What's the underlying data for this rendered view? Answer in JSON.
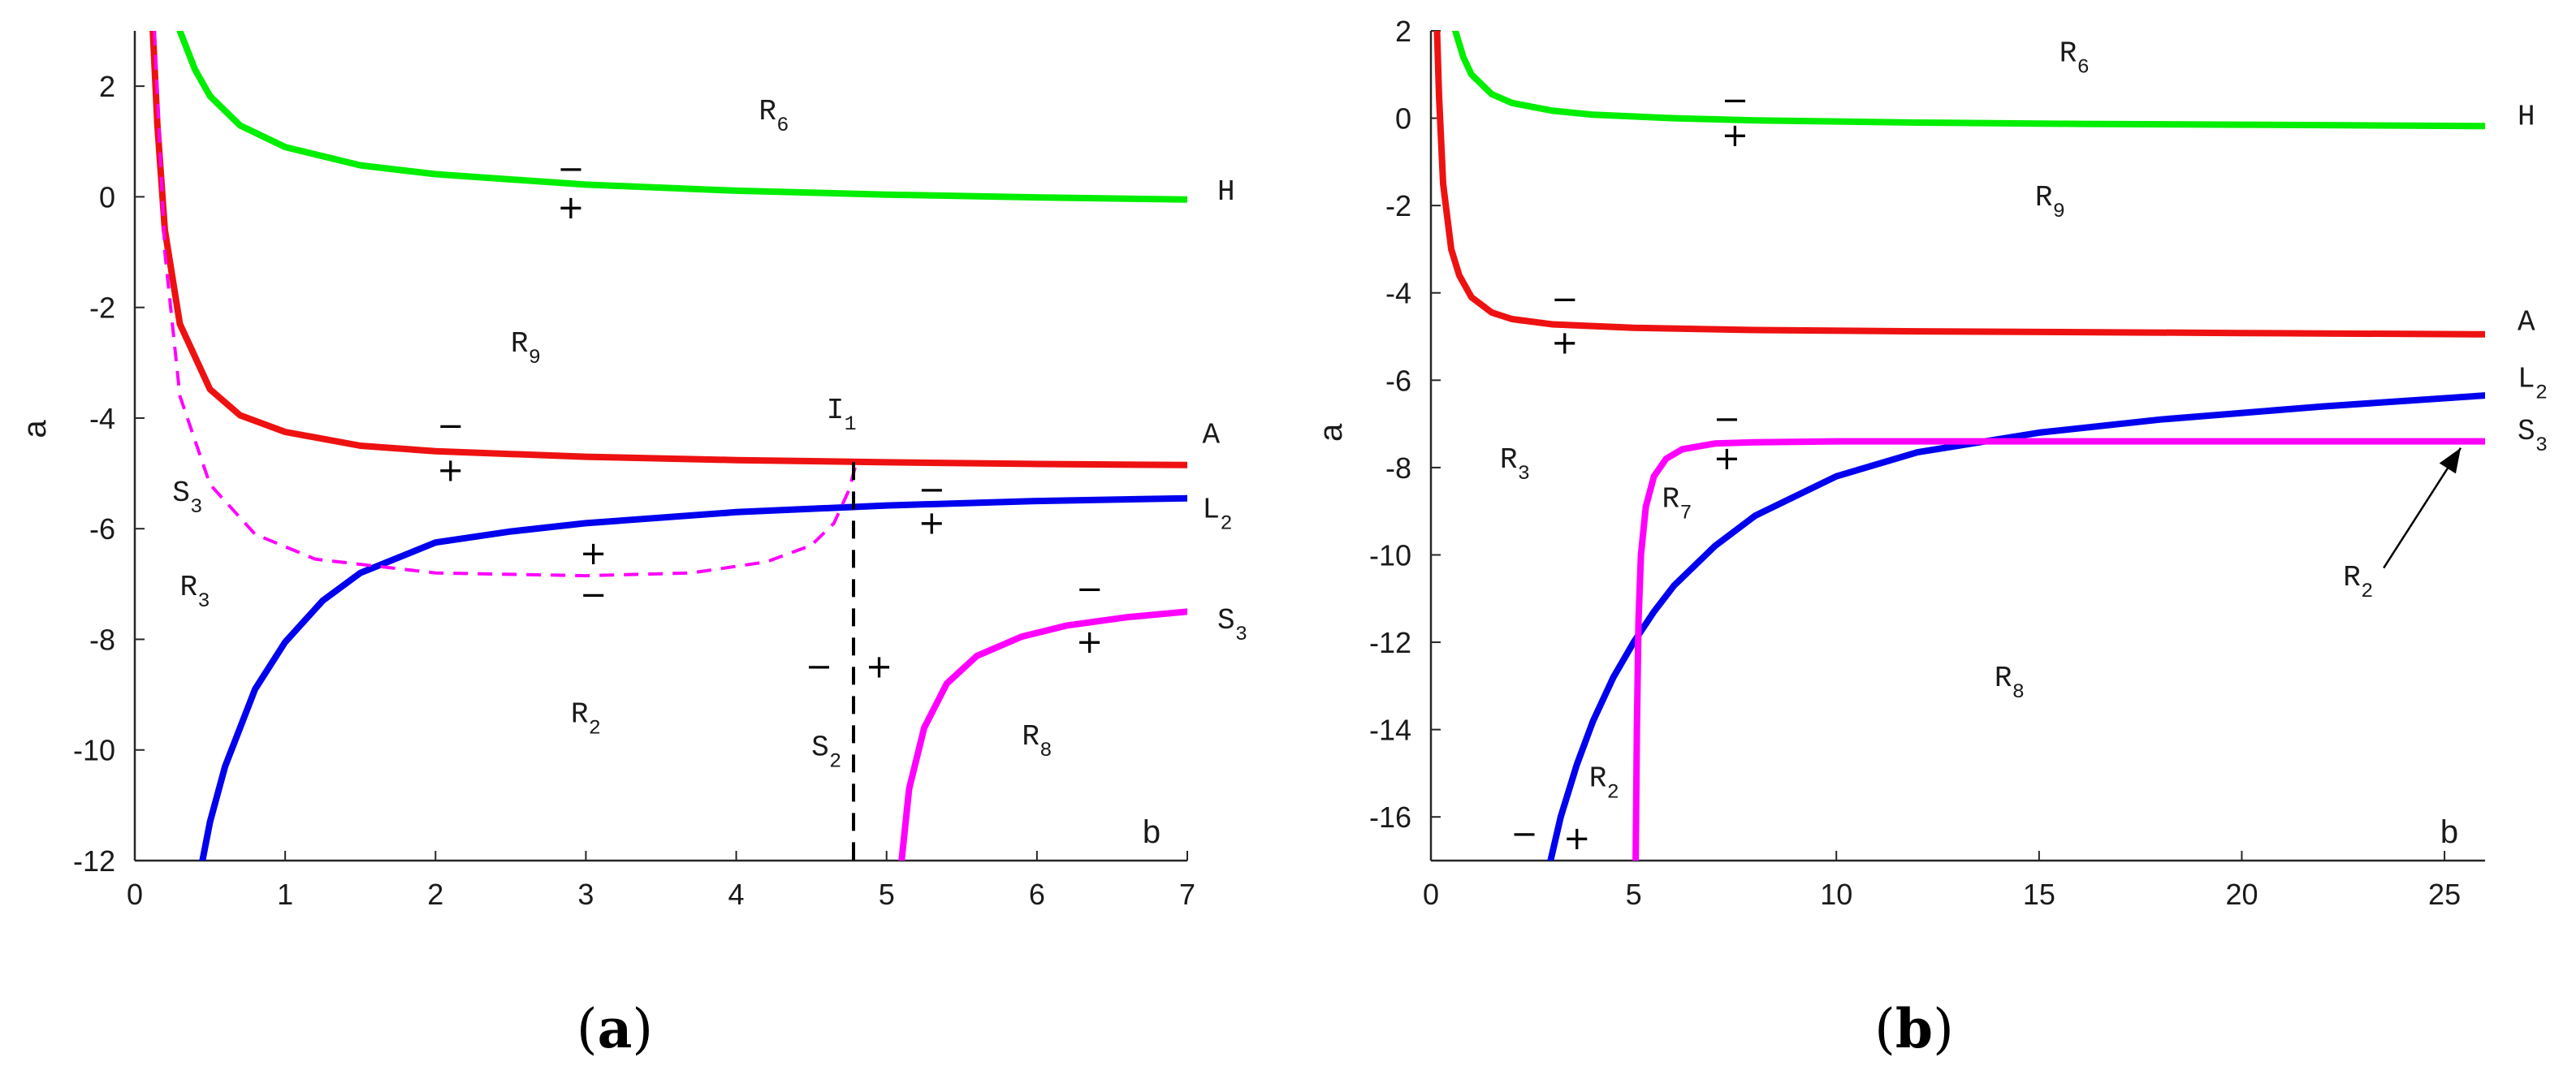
{
  "chart_data": [
    {
      "type": "line",
      "caption": "(a)",
      "caption_parts": [
        "(",
        "a",
        ")"
      ],
      "xlabel": "b",
      "ylabel": "a",
      "xlim": [
        0,
        7
      ],
      "ylim": [
        -12,
        3
      ],
      "xticks": [
        0,
        1,
        2,
        3,
        4,
        5,
        6,
        7
      ],
      "yticks": [
        2,
        0,
        -2,
        -4,
        -6,
        -8,
        -10,
        -12
      ],
      "series": [
        {
          "name": "H",
          "color": "#00ee00",
          "style": "solid",
          "x": [
            0.3,
            0.4,
            0.5,
            0.7,
            1.0,
            1.5,
            2.0,
            3.0,
            4.0,
            5.0,
            6.0,
            7.0
          ],
          "y": [
            3.0,
            2.3,
            1.82,
            1.29,
            0.9,
            0.57,
            0.41,
            0.22,
            0.11,
            0.04,
            -0.01,
            -0.05
          ]
        },
        {
          "name": "A",
          "color": "#ee1111",
          "style": "solid",
          "x": [
            0.12,
            0.15,
            0.2,
            0.3,
            0.5,
            0.7,
            1.0,
            1.5,
            2.0,
            3.0,
            4.0,
            5.0,
            6.0,
            7.0
          ],
          "y": [
            3.0,
            1.3,
            -0.6,
            -2.3,
            -3.48,
            -3.95,
            -4.25,
            -4.5,
            -4.6,
            -4.7,
            -4.76,
            -4.8,
            -4.83,
            -4.85
          ]
        },
        {
          "name": "L2",
          "color": "#0000ee",
          "style": "solid",
          "x": [
            0.45,
            0.5,
            0.6,
            0.8,
            1.0,
            1.25,
            1.5,
            2.0,
            2.5,
            3.0,
            4.0,
            5.0,
            6.0,
            7.0
          ],
          "y": [
            -12.0,
            -11.3,
            -10.3,
            -8.9,
            -8.05,
            -7.3,
            -6.8,
            -6.25,
            -6.05,
            -5.9,
            -5.7,
            -5.58,
            -5.5,
            -5.45
          ]
        },
        {
          "name": "S3",
          "color": "#ff00ff",
          "style": "solid",
          "x": [
            5.1,
            5.15,
            5.25,
            5.4,
            5.6,
            5.9,
            6.2,
            6.6,
            7.0
          ],
          "y": [
            -12.0,
            -10.7,
            -9.6,
            -8.8,
            -8.3,
            -7.95,
            -7.75,
            -7.6,
            -7.5
          ]
        },
        {
          "name": "S3 (dashed)",
          "color": "#ff00ff",
          "style": "dashed",
          "x": [
            0.13,
            0.2,
            0.3,
            0.5,
            0.8,
            1.2,
            2.0,
            3.0,
            3.7,
            4.2,
            4.5,
            4.65,
            4.75,
            4.8
          ],
          "y": [
            3.0,
            -1.0,
            -3.6,
            -5.2,
            -6.1,
            -6.55,
            -6.8,
            -6.85,
            -6.8,
            -6.6,
            -6.3,
            -5.9,
            -5.3,
            -4.8
          ]
        },
        {
          "name": "S2",
          "color": "#000000",
          "style": "dashed",
          "x": [
            4.78,
            4.78
          ],
          "y": [
            -4.8,
            -12.0
          ]
        }
      ],
      "annotations": [
        {
          "text": "R",
          "sub": "6",
          "x": 4.15,
          "y": 1.4
        },
        {
          "text": "R",
          "sub": "9",
          "x": 2.5,
          "y": -2.8
        },
        {
          "text": "R",
          "sub": "3",
          "x": 0.3,
          "y": -7.2
        },
        {
          "text": "R",
          "sub": "2",
          "x": 2.9,
          "y": -9.5
        },
        {
          "text": "R",
          "sub": "8",
          "x": 5.9,
          "y": -9.9
        },
        {
          "text": "S",
          "sub": "3",
          "x": 0.25,
          "y": -5.5
        },
        {
          "text": "S",
          "sub": "2",
          "x": 4.5,
          "y": -10.1
        },
        {
          "text": "I",
          "sub": "1",
          "x": 4.6,
          "y": -4.0
        },
        {
          "text": "H",
          "sub": "",
          "x": 7.2,
          "y": -0.05
        },
        {
          "text": "A",
          "sub": "",
          "x": 7.1,
          "y": -4.45
        },
        {
          "text": "L",
          "sub": "2",
          "x": 7.1,
          "y": -5.8
        },
        {
          "text": "S",
          "sub": "3",
          "x": 7.2,
          "y": -7.8
        }
      ],
      "signs": [
        {
          "s": "−",
          "x": 2.9,
          "y": 0.5
        },
        {
          "s": "+",
          "x": 2.9,
          "y": -0.2
        },
        {
          "s": "−",
          "x": 2.1,
          "y": -4.15
        },
        {
          "s": "+",
          "x": 2.1,
          "y": -4.95
        },
        {
          "s": "−",
          "x": 5.3,
          "y": -5.3
        },
        {
          "s": "+",
          "x": 5.3,
          "y": -5.9
        },
        {
          "s": "+",
          "x": 3.05,
          "y": -6.45
        },
        {
          "s": "−",
          "x": 3.05,
          "y": -7.2
        },
        {
          "s": "−",
          "x": 4.55,
          "y": -8.5
        },
        {
          "s": "+",
          "x": 4.95,
          "y": -8.5
        },
        {
          "s": "−",
          "x": 6.35,
          "y": -7.1
        },
        {
          "s": "+",
          "x": 6.35,
          "y": -8.05
        }
      ]
    },
    {
      "type": "line",
      "caption": "(b)",
      "caption_parts": [
        "(",
        "b",
        ")"
      ],
      "xlabel": "b",
      "ylabel": "a",
      "xlim": [
        0,
        26
      ],
      "ylim": [
        -17,
        2
      ],
      "xticks": [
        0,
        5,
        10,
        15,
        20,
        25
      ],
      "yticks": [
        2,
        0,
        -2,
        -4,
        -6,
        -8,
        -10,
        -12,
        -14,
        -16
      ],
      "series": [
        {
          "name": "H",
          "color": "#00ee00",
          "style": "solid",
          "x": [
            0.6,
            0.8,
            1.0,
            1.5,
            2.0,
            3.0,
            4.0,
            6.0,
            8.0,
            12.0,
            16.0,
            20.0,
            26.0
          ],
          "y": [
            2.0,
            1.4,
            1.0,
            0.55,
            0.35,
            0.17,
            0.08,
            0.0,
            -0.05,
            -0.1,
            -0.13,
            -0.15,
            -0.18
          ]
        },
        {
          "name": "A",
          "color": "#ee1111",
          "style": "solid",
          "x": [
            0.15,
            0.2,
            0.3,
            0.5,
            0.7,
            1.0,
            1.5,
            2.0,
            3.0,
            5.0,
            8.0,
            12.0,
            16.0,
            20.0,
            26.0
          ],
          "y": [
            2.0,
            0.5,
            -1.5,
            -3.0,
            -3.6,
            -4.1,
            -4.45,
            -4.6,
            -4.72,
            -4.8,
            -4.85,
            -4.88,
            -4.9,
            -4.92,
            -4.95
          ]
        },
        {
          "name": "L2",
          "color": "#0000ee",
          "style": "solid",
          "x": [
            2.95,
            3.2,
            3.6,
            4.0,
            4.5,
            5.0,
            5.5,
            6.0,
            7.0,
            8.0,
            10.0,
            12.0,
            15.0,
            18.0,
            22.0,
            26.0
          ],
          "y": [
            -17.0,
            -16.0,
            -14.8,
            -13.8,
            -12.8,
            -12.0,
            -11.3,
            -10.7,
            -9.8,
            -9.1,
            -8.2,
            -7.65,
            -7.2,
            -6.9,
            -6.6,
            -6.35
          ]
        },
        {
          "name": "S3",
          "color": "#ff00ff",
          "style": "solid",
          "x": [
            5.05,
            5.08,
            5.12,
            5.18,
            5.3,
            5.5,
            5.8,
            6.2,
            7.0,
            8.0,
            10.0,
            15.0,
            20.0,
            26.0
          ],
          "y": [
            -17.0,
            -14.0,
            -11.5,
            -10.0,
            -8.9,
            -8.2,
            -7.8,
            -7.58,
            -7.45,
            -7.42,
            -7.4,
            -7.4,
            -7.4,
            -7.4
          ]
        }
      ],
      "annotations": [
        {
          "text": "R",
          "sub": "6",
          "x": 15.5,
          "y": 1.3
        },
        {
          "text": "R",
          "sub": "9",
          "x": 14.9,
          "y": -2.0
        },
        {
          "text": "R",
          "sub": "3",
          "x": 1.7,
          "y": -8.0
        },
        {
          "text": "R",
          "sub": "7",
          "x": 5.7,
          "y": -8.9
        },
        {
          "text": "R",
          "sub": "2",
          "x": 22.5,
          "y": -10.7
        },
        {
          "text": "R",
          "sub": "8",
          "x": 13.9,
          "y": -13.0
        },
        {
          "text": "R",
          "sub": "2",
          "x": 3.9,
          "y": -15.3
        },
        {
          "text": "H",
          "sub": "",
          "x": 26.8,
          "y": -0.15
        },
        {
          "text": "A",
          "sub": "",
          "x": 26.8,
          "y": -4.85
        },
        {
          "text": "L",
          "sub": "2",
          "x": 26.8,
          "y": -6.15
        },
        {
          "text": "S",
          "sub": "3",
          "x": 26.8,
          "y": -7.35
        }
      ],
      "signs": [
        {
          "s": "−",
          "x": 7.5,
          "y": 0.4
        },
        {
          "s": "+",
          "x": 7.5,
          "y": -0.4
        },
        {
          "s": "−",
          "x": 3.3,
          "y": -4.15
        },
        {
          "s": "+",
          "x": 3.3,
          "y": -5.15
        },
        {
          "s": "−",
          "x": 7.3,
          "y": -6.9
        },
        {
          "s": "+",
          "x": 7.3,
          "y": -7.8
        },
        {
          "s": "−",
          "x": 2.3,
          "y": -16.4
        },
        {
          "s": "+",
          "x": 3.6,
          "y": -16.5
        }
      ],
      "arrow": {
        "from": [
          23.5,
          -10.3
        ],
        "to": [
          25.4,
          -7.55
        ]
      }
    }
  ]
}
